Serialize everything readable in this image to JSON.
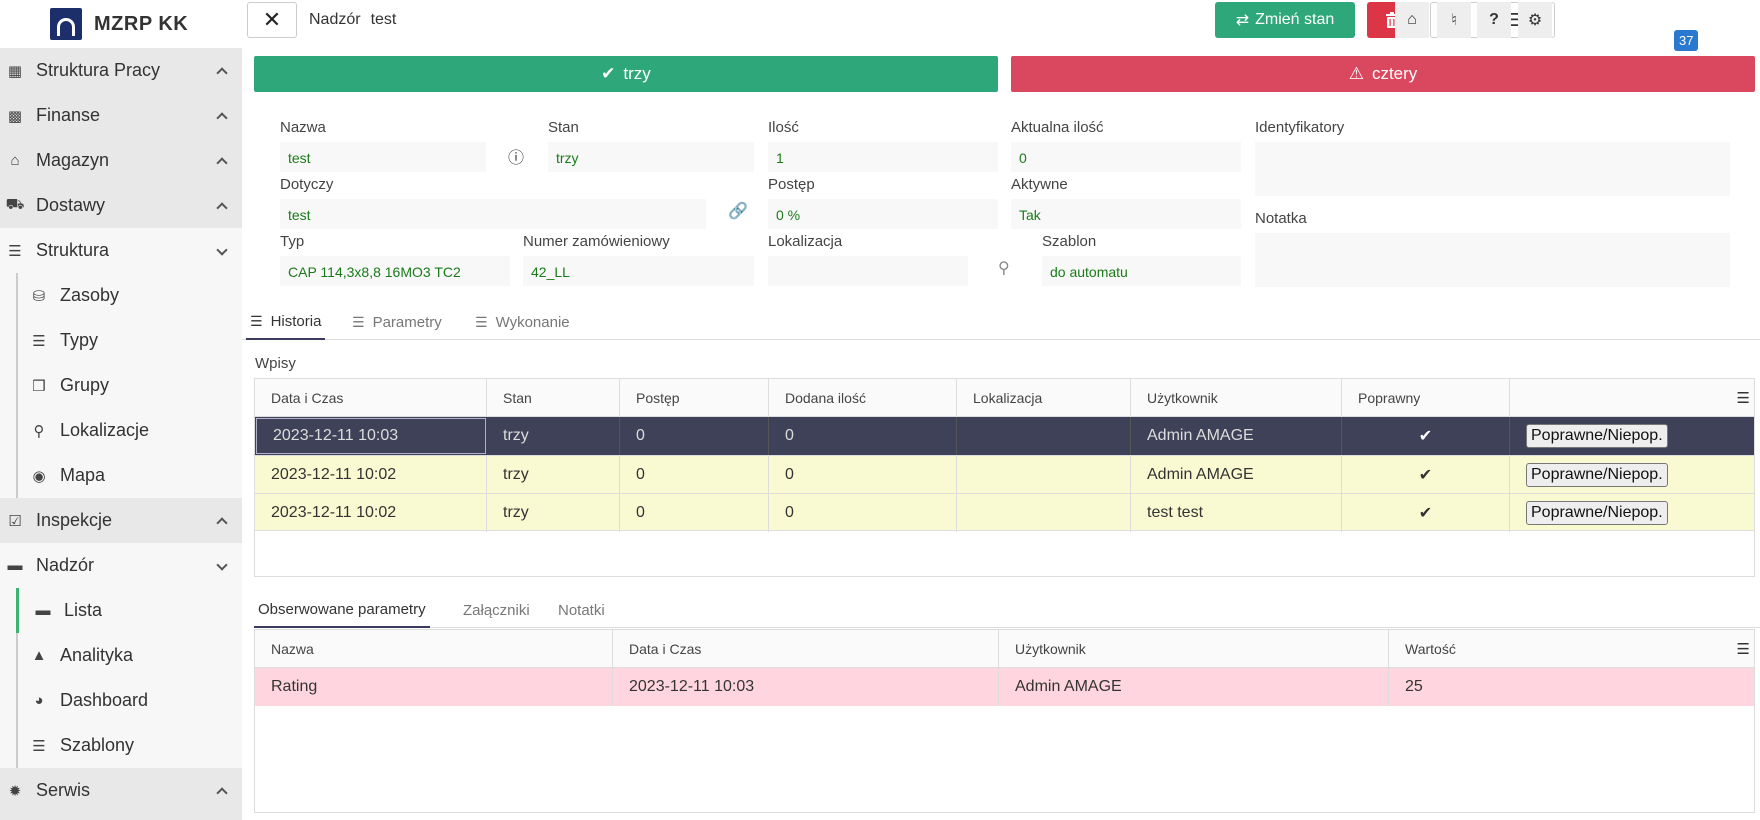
{
  "brand": {
    "name": "MZRP KK"
  },
  "sidebar": {
    "items": [
      {
        "label": "Struktura Pracy",
        "icon": "building-icon"
      },
      {
        "label": "Finanse",
        "icon": "money-icon"
      },
      {
        "label": "Magazyn",
        "icon": "warehouse-icon"
      },
      {
        "label": "Dostawy",
        "icon": "truck-icon"
      },
      {
        "label": "Struktura",
        "icon": "sitemap-icon"
      },
      {
        "label": "Inspekcje",
        "icon": "check-square-icon"
      },
      {
        "label": "Nadzór",
        "icon": "supervision-icon"
      },
      {
        "label": "Serwis",
        "icon": "bug-icon"
      }
    ],
    "struktura_sub": [
      {
        "label": "Zasoby"
      },
      {
        "label": "Typy"
      },
      {
        "label": "Grupy"
      },
      {
        "label": "Lokalizacje"
      },
      {
        "label": "Mapa"
      }
    ],
    "nadzor_sub": [
      {
        "label": "Lista"
      },
      {
        "label": "Analityka"
      },
      {
        "label": "Dashboard"
      },
      {
        "label": "Szablony"
      }
    ]
  },
  "topbar": {
    "section": "Nadzór",
    "title": "test",
    "change_state_label": "Zmień stan",
    "notification_count": "37"
  },
  "status": {
    "ok_label": "trzy",
    "warn_label": "cztery"
  },
  "form": {
    "nazwa": {
      "label": "Nazwa",
      "value": "test"
    },
    "stan": {
      "label": "Stan",
      "value": "trzy"
    },
    "ilosc": {
      "label": "Ilość",
      "value": "1"
    },
    "aktualna_ilosc": {
      "label": "Aktualna ilość",
      "value": "0"
    },
    "identyfikatory": {
      "label": "Identyfikatory",
      "value": ""
    },
    "dotyczy": {
      "label": "Dotyczy",
      "value": "test"
    },
    "postep": {
      "label": "Postęp",
      "value": "0 %"
    },
    "aktywne": {
      "label": "Aktywne",
      "value": "Tak"
    },
    "notatka": {
      "label": "Notatka",
      "value": ""
    },
    "typ": {
      "label": "Typ",
      "value": "CAP 114,3x8,8 16MO3 TC2"
    },
    "numer_zamowieniowy": {
      "label": "Numer zamówieniowy",
      "value": "42_LL"
    },
    "lokalizacja": {
      "label": "Lokalizacja",
      "value": ""
    },
    "szablon": {
      "label": "Szablon",
      "value": "do automatu"
    }
  },
  "tabs": [
    {
      "label": "Historia"
    },
    {
      "label": "Parametry"
    },
    {
      "label": "Wykonanie"
    }
  ],
  "history": {
    "section_label": "Wpisy",
    "columns": [
      "Data i Czas",
      "Stan",
      "Postęp",
      "Dodana ilość",
      "Lokalizacja",
      "Użytkownik",
      "Poprawny",
      ""
    ],
    "rows": [
      {
        "datetime": "2023-12-11 10:03",
        "stan": "trzy",
        "postep": "0",
        "ilosc": "0",
        "lokalizacja": "",
        "user": "Admin AMAGE",
        "button": "Poprawne/Niepop."
      },
      {
        "datetime": "2023-12-11 10:02",
        "stan": "trzy",
        "postep": "0",
        "ilosc": "0",
        "lokalizacja": "",
        "user": "Admin AMAGE",
        "button": "Poprawne/Niepop."
      },
      {
        "datetime": "2023-12-11 10:02",
        "stan": "trzy",
        "postep": "0",
        "ilosc": "0",
        "lokalizacja": "",
        "user": "test test",
        "button": "Poprawne/Niepop."
      }
    ]
  },
  "tabs2": [
    {
      "label": "Obserwowane parametry"
    },
    {
      "label": "Załączniki"
    },
    {
      "label": "Notatki"
    }
  ],
  "params": {
    "columns": [
      "Nazwa",
      "Data i Czas",
      "Użytkownik",
      "Wartość"
    ],
    "rows": [
      {
        "nazwa": "Rating",
        "datetime": "2023-12-11 10:03",
        "user": "Admin AMAGE",
        "value": "25"
      }
    ]
  },
  "colors": {
    "success": "#2ea77a",
    "danger": "#dc3545",
    "selected_row": "#3e4158",
    "highlight_row": "#fafad2",
    "param_row": "#ffd6e0"
  }
}
